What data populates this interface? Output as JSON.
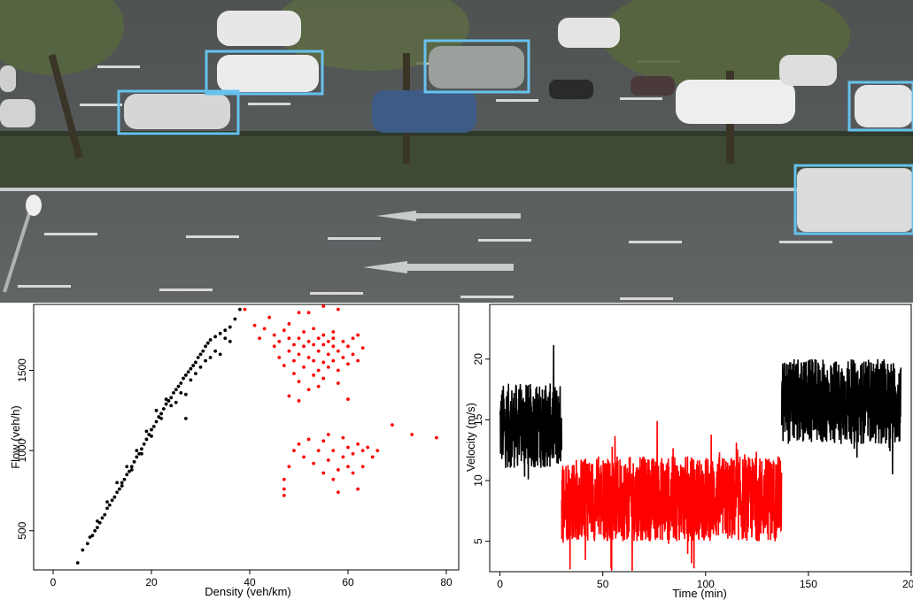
{
  "photo": {
    "description_labels": [],
    "box_color": "#66c2ee"
  },
  "chart_data": [
    {
      "type": "scatter",
      "title": "",
      "xlabel": "Density (veh/km)",
      "ylabel": "Flow (veh/h)",
      "xlim": [
        0,
        80
      ],
      "ylim": [
        300,
        1900
      ],
      "xticks": [
        "0",
        "20",
        "40",
        "60",
        "80"
      ],
      "yticks": [
        "500",
        "1000",
        "1500"
      ],
      "grid": false,
      "series": [
        {
          "color": "#000000",
          "points": [
            [
              5,
              300
            ],
            [
              6,
              380
            ],
            [
              7,
              420
            ],
            [
              7.5,
              460
            ],
            [
              8,
              470
            ],
            [
              8.5,
              500
            ],
            [
              9,
              520
            ],
            [
              9.5,
              550
            ],
            [
              10,
              580
            ],
            [
              10.5,
              600
            ],
            [
              11,
              640
            ],
            [
              11.5,
              660
            ],
            [
              12,
              690
            ],
            [
              12.5,
              710
            ],
            [
              13,
              740
            ],
            [
              13.5,
              760
            ],
            [
              14,
              800
            ],
            [
              14.5,
              820
            ],
            [
              15,
              850
            ],
            [
              15.5,
              870
            ],
            [
              16,
              900
            ],
            [
              16.5,
              930
            ],
            [
              17,
              960
            ],
            [
              17.5,
              980
            ],
            [
              18,
              1010
            ],
            [
              18.5,
              1040
            ],
            [
              19,
              1070
            ],
            [
              19.5,
              1100
            ],
            [
              20,
              1130
            ],
            [
              20.5,
              1150
            ],
            [
              21,
              1180
            ],
            [
              21.5,
              1210
            ],
            [
              22,
              1230
            ],
            [
              22.5,
              1260
            ],
            [
              23,
              1290
            ],
            [
              23.5,
              1310
            ],
            [
              24,
              1330
            ],
            [
              24.5,
              1360
            ],
            [
              25,
              1380
            ],
            [
              25.5,
              1400
            ],
            [
              26,
              1420
            ],
            [
              26.5,
              1450
            ],
            [
              27,
              1470
            ],
            [
              27.5,
              1490
            ],
            [
              28,
              1510
            ],
            [
              28.5,
              1530
            ],
            [
              29,
              1550
            ],
            [
              29.5,
              1580
            ],
            [
              30,
              1600
            ],
            [
              30.5,
              1620
            ],
            [
              31,
              1650
            ],
            [
              31.5,
              1670
            ],
            [
              32,
              1690
            ],
            [
              33,
              1710
            ],
            [
              34,
              1730
            ],
            [
              35,
              1750
            ],
            [
              36,
              1770
            ],
            [
              37,
              1820
            ],
            [
              38,
              1880
            ],
            [
              14,
              780
            ],
            [
              16,
              880
            ],
            [
              18,
              980
            ],
            [
              20,
              1090
            ],
            [
              22,
              1200
            ],
            [
              24,
              1280
            ],
            [
              26,
              1360
            ],
            [
              28,
              1440
            ],
            [
              30,
              1520
            ],
            [
              25,
              1300
            ],
            [
              27,
              1350
            ],
            [
              29,
              1480
            ],
            [
              31,
              1560
            ],
            [
              33,
              1620
            ],
            [
              23,
              1320
            ],
            [
              21,
              1250
            ],
            [
              19,
              1120
            ],
            [
              17,
              1000
            ],
            [
              15,
              900
            ],
            [
              13,
              800
            ],
            [
              11,
              680
            ],
            [
              9,
              560
            ],
            [
              35,
              1700
            ],
            [
              34,
              1600
            ],
            [
              32,
              1580
            ],
            [
              36,
              1680
            ],
            [
              27,
              1200
            ]
          ]
        },
        {
          "color": "#ff0000",
          "points": [
            [
              39,
              1880
            ],
            [
              41,
              1780
            ],
            [
              42,
              1700
            ],
            [
              43,
              1760
            ],
            [
              44,
              1830
            ],
            [
              45,
              1650
            ],
            [
              45,
              1720
            ],
            [
              46,
              1580
            ],
            [
              46,
              1680
            ],
            [
              47,
              1750
            ],
            [
              47,
              1530
            ],
            [
              48,
              1620
            ],
            [
              48,
              1700
            ],
            [
              48,
              1790
            ],
            [
              49,
              1560
            ],
            [
              49,
              1660
            ],
            [
              49,
              1480
            ],
            [
              50,
              1600
            ],
            [
              50,
              1700
            ],
            [
              50,
              1860
            ],
            [
              50,
              1430
            ],
            [
              51,
              1520
            ],
            [
              51,
              1650
            ],
            [
              51,
              1740
            ],
            [
              52,
              1580
            ],
            [
              52,
              1680
            ],
            [
              52,
              1380
            ],
            [
              53,
              1470
            ],
            [
              53,
              1560
            ],
            [
              53,
              1660
            ],
            [
              53,
              1760
            ],
            [
              54,
              1500
            ],
            [
              54,
              1620
            ],
            [
              54,
              1700
            ],
            [
              54,
              1400
            ],
            [
              55,
              1550
            ],
            [
              55,
              1660
            ],
            [
              55,
              1720
            ],
            [
              55,
              1450
            ],
            [
              56,
              1600
            ],
            [
              56,
              1680
            ],
            [
              56,
              1520
            ],
            [
              57,
              1650
            ],
            [
              57,
              1560
            ],
            [
              57,
              1700
            ],
            [
              57,
              1740
            ],
            [
              58,
              1620
            ],
            [
              58,
              1500
            ],
            [
              58,
              1420
            ],
            [
              59,
              1680
            ],
            [
              59,
              1580
            ],
            [
              60,
              1650
            ],
            [
              60,
              1540
            ],
            [
              61,
              1700
            ],
            [
              61,
              1600
            ],
            [
              62,
              1560
            ],
            [
              62,
              1720
            ],
            [
              63,
              1640
            ],
            [
              52,
              1860
            ],
            [
              55,
              1900
            ],
            [
              58,
              1880
            ],
            [
              48,
              1340
            ],
            [
              50,
              1310
            ],
            [
              60,
              1320
            ],
            [
              47,
              820
            ],
            [
              47,
              760
            ],
            [
              47,
              720
            ],
            [
              48,
              900
            ],
            [
              49,
              1000
            ],
            [
              50,
              1040
            ],
            [
              51,
              960
            ],
            [
              52,
              1070
            ],
            [
              53,
              920
            ],
            [
              54,
              1000
            ],
            [
              55,
              860
            ],
            [
              55,
              1060
            ],
            [
              56,
              940
            ],
            [
              56,
              1100
            ],
            [
              57,
              820
            ],
            [
              57,
              1000
            ],
            [
              58,
              740
            ],
            [
              58,
              880
            ],
            [
              59,
              960
            ],
            [
              59,
              1080
            ],
            [
              60,
              900
            ],
            [
              60,
              1020
            ],
            [
              61,
              860
            ],
            [
              61,
              980
            ],
            [
              62,
              760
            ],
            [
              62,
              1040
            ],
            [
              63,
              900
            ],
            [
              63,
              1000
            ],
            [
              64,
              1020
            ],
            [
              65,
              960
            ],
            [
              69,
              1160
            ],
            [
              73,
              1100
            ],
            [
              78,
              1080
            ],
            [
              66,
              1000
            ]
          ]
        }
      ]
    },
    {
      "type": "line",
      "title": "",
      "xlabel": "Time (min)",
      "ylabel": "Velocity (m/s)",
      "xlim": [
        -5,
        200
      ],
      "ylim": [
        2.5,
        24.5
      ],
      "xticks": [
        "0",
        "50",
        "100",
        "150",
        "200"
      ],
      "yticks": [
        "5",
        "10",
        "15",
        "20"
      ],
      "grid": false,
      "series": [
        {
          "color": "#000000",
          "segment": [
            0,
            30
          ],
          "mean": 14.5,
          "spread": 3.5
        },
        {
          "color": "#ff0000",
          "segment": [
            30,
            137
          ],
          "mean": 8.5,
          "spread": 3.5
        },
        {
          "color": "#000000",
          "segment": [
            137,
            195
          ],
          "mean": 16.5,
          "spread": 3.5
        }
      ]
    }
  ]
}
